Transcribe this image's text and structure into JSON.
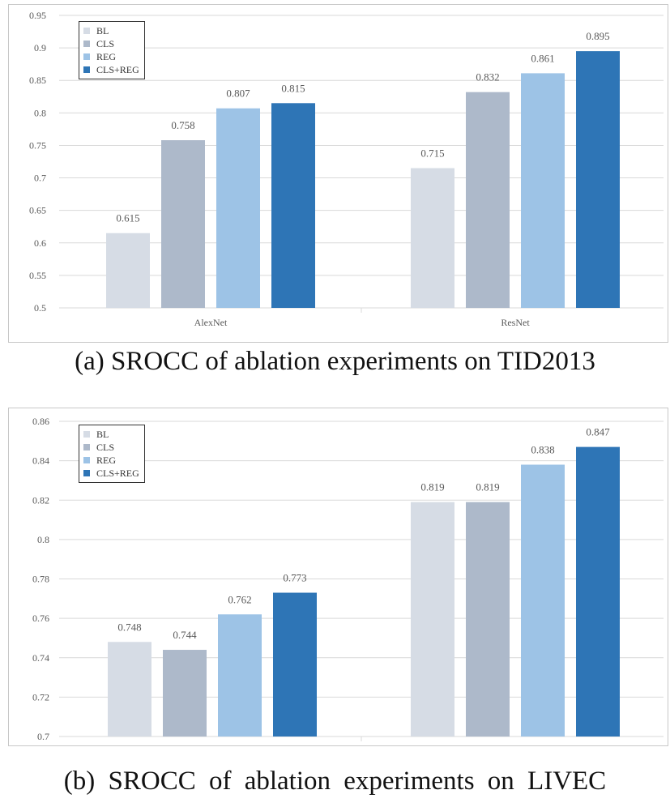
{
  "chart_data": [
    {
      "type": "bar",
      "categories": [
        "AlexNet",
        "ResNet"
      ],
      "series": [
        {
          "name": "BL",
          "values": [
            0.615,
            0.715
          ]
        },
        {
          "name": "CLS",
          "values": [
            0.758,
            0.832
          ]
        },
        {
          "name": "REG",
          "values": [
            0.807,
            0.861
          ]
        },
        {
          "name": "CLS+REG",
          "values": [
            0.815,
            0.895
          ]
        }
      ],
      "data_labels": [
        [
          "0.615",
          "0.758",
          "0.807",
          "0.815"
        ],
        [
          "0.715",
          "0.832",
          "0.861",
          "0.895"
        ]
      ],
      "yticks": [
        "0.5",
        "0.55",
        "0.6",
        "0.65",
        "0.7",
        "0.75",
        "0.8",
        "0.85",
        "0.9",
        "0.95"
      ],
      "ylim": [
        0.5,
        0.95
      ],
      "title": "",
      "xlabel": "",
      "ylabel": "",
      "grid": true,
      "legend_position": "top-left",
      "caption": "(a) SROCC of ablation experiments on TID2013"
    },
    {
      "type": "bar",
      "categories": [
        "AlexNet",
        "ResNet"
      ],
      "series": [
        {
          "name": "BL",
          "values": [
            0.748,
            0.819
          ]
        },
        {
          "name": "CLS",
          "values": [
            0.744,
            0.819
          ]
        },
        {
          "name": "REG",
          "values": [
            0.762,
            0.838
          ]
        },
        {
          "name": "CLS+REG",
          "values": [
            0.773,
            0.847
          ]
        }
      ],
      "data_labels": [
        [
          "0.748",
          "0.744",
          "0.762",
          "0.773"
        ],
        [
          "0.819",
          "0.819",
          "0.838",
          "0.847"
        ]
      ],
      "yticks": [
        "0.7",
        "0.72",
        "0.74",
        "0.76",
        "0.78",
        "0.8",
        "0.82",
        "0.84",
        "0.86"
      ],
      "ylim": [
        0.7,
        0.86
      ],
      "title": "",
      "xlabel": "",
      "ylabel": "",
      "grid": true,
      "legend_position": "top-left",
      "caption": "(b) SROCC of ablation experiments on LIVEC"
    }
  ],
  "colors": {
    "series": [
      "#d6dce5",
      "#adb9ca",
      "#9dc3e6",
      "#2e75b6"
    ],
    "grid": "#d9d9d9",
    "text": "#595959"
  }
}
